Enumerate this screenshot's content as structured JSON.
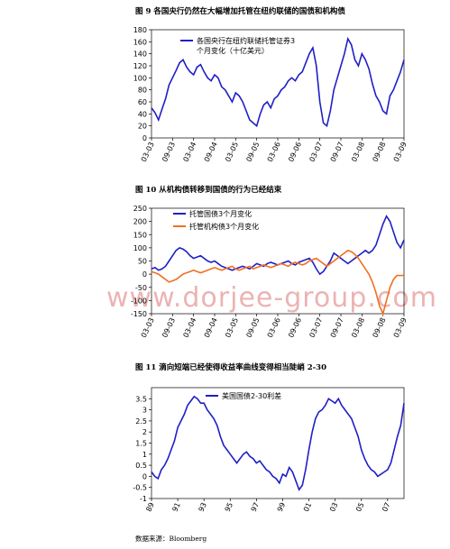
{
  "chart_data": [
    {
      "type": "line",
      "title": "图 9 各国央行仍然在大幅增加托管在纽约联储的国债和机构债",
      "categories": [
        "03-03",
        null,
        null,
        null,
        null,
        null,
        "09-03",
        null,
        null,
        null,
        null,
        null,
        "03-04",
        null,
        null,
        null,
        null,
        null,
        "09-04",
        null,
        null,
        null,
        null,
        null,
        "03-05",
        null,
        null,
        null,
        null,
        null,
        "09-05",
        null,
        null,
        null,
        null,
        null,
        "03-06",
        null,
        null,
        null,
        null,
        null,
        "09-06",
        null,
        null,
        null,
        null,
        null,
        "03-07",
        null,
        null,
        null,
        null,
        null,
        "09-07",
        null,
        null,
        null,
        null,
        null,
        "03-08",
        null,
        null,
        null,
        null,
        null,
        "09-08",
        null,
        null,
        null,
        null,
        null,
        "03-09"
      ],
      "series": [
        {
          "name": "各国央行在纽约联储托管证券3个月变化（十亿美元）",
          "color": "#1f1fc8",
          "values": [
            50,
            42,
            30,
            48,
            65,
            88,
            100,
            112,
            125,
            130,
            118,
            110,
            105,
            118,
            122,
            110,
            100,
            95,
            105,
            100,
            85,
            80,
            70,
            60,
            75,
            70,
            60,
            45,
            30,
            25,
            20,
            40,
            55,
            60,
            50,
            65,
            70,
            80,
            85,
            95,
            100,
            95,
            105,
            110,
            125,
            140,
            150,
            120,
            60,
            25,
            20,
            45,
            80,
            100,
            120,
            140,
            165,
            155,
            130,
            120,
            140,
            130,
            115,
            90,
            70,
            60,
            45,
            40,
            70,
            80,
            95,
            110,
            130
          ]
        }
      ],
      "ylim": [
        0,
        180
      ],
      "yticks": [
        0,
        20,
        40,
        60,
        80,
        100,
        120,
        140,
        160,
        180
      ]
    },
    {
      "type": "line",
      "title": "图 10 从机构债转移到国债的行为已经结束",
      "categories": [
        "03-03",
        null,
        null,
        null,
        null,
        null,
        "09-03",
        null,
        null,
        null,
        null,
        null,
        "03-04",
        null,
        null,
        null,
        null,
        null,
        "09-04",
        null,
        null,
        null,
        null,
        null,
        "03-05",
        null,
        null,
        null,
        null,
        null,
        "09-05",
        null,
        null,
        null,
        null,
        null,
        "03-06",
        null,
        null,
        null,
        null,
        null,
        "09-06",
        null,
        null,
        null,
        null,
        null,
        "03-07",
        null,
        null,
        null,
        null,
        null,
        "09-07",
        null,
        null,
        null,
        null,
        null,
        "03-08",
        null,
        null,
        null,
        null,
        null,
        "09-08",
        null,
        null,
        null,
        null,
        null,
        "03-09"
      ],
      "series": [
        {
          "name": "托管国债3个月变化",
          "color": "#1f1fc8",
          "values": [
            20,
            25,
            15,
            20,
            30,
            50,
            70,
            90,
            100,
            95,
            85,
            70,
            60,
            65,
            70,
            60,
            50,
            45,
            50,
            40,
            30,
            25,
            20,
            15,
            20,
            25,
            30,
            25,
            20,
            30,
            40,
            35,
            30,
            40,
            45,
            40,
            35,
            40,
            45,
            50,
            40,
            35,
            45,
            50,
            55,
            60,
            45,
            20,
            0,
            10,
            30,
            50,
            80,
            70,
            60,
            50,
            40,
            50,
            60,
            70,
            80,
            90,
            80,
            90,
            110,
            150,
            190,
            220,
            200,
            160,
            120,
            100,
            130
          ]
        },
        {
          "name": "托管机构债3个月变化",
          "color": "#f07020",
          "values": [
            10,
            5,
            0,
            -10,
            -20,
            -30,
            -25,
            -20,
            -10,
            0,
            5,
            10,
            15,
            10,
            5,
            10,
            15,
            20,
            25,
            20,
            15,
            20,
            25,
            30,
            20,
            15,
            20,
            25,
            30,
            20,
            25,
            30,
            35,
            30,
            25,
            30,
            35,
            40,
            35,
            30,
            40,
            45,
            40,
            35,
            40,
            50,
            55,
            60,
            50,
            40,
            30,
            40,
            50,
            60,
            70,
            80,
            90,
            85,
            75,
            60,
            40,
            20,
            0,
            -30,
            -70,
            -120,
            -150,
            -100,
            -50,
            -20,
            -5,
            -5,
            -5
          ]
        }
      ],
      "ylim": [
        -150,
        250
      ],
      "yticks": [
        -150,
        -100,
        -50,
        0,
        50,
        100,
        150,
        200,
        250
      ]
    },
    {
      "type": "line",
      "title": "图 11 滴向短端已经使得收益率曲线变得相当陡峭 2-30",
      "categories": [
        "89",
        null,
        null,
        null,
        null,
        null,
        null,
        null,
        "91",
        null,
        null,
        null,
        null,
        null,
        null,
        null,
        "93",
        null,
        null,
        null,
        null,
        null,
        null,
        null,
        "95",
        null,
        null,
        null,
        null,
        null,
        null,
        null,
        "97",
        null,
        null,
        null,
        null,
        null,
        null,
        null,
        "99",
        null,
        null,
        null,
        null,
        null,
        null,
        null,
        "01",
        null,
        null,
        null,
        null,
        null,
        null,
        null,
        "03",
        null,
        null,
        null,
        null,
        null,
        null,
        null,
        "05",
        null,
        null,
        null,
        null,
        null,
        null,
        null,
        "07",
        null,
        null,
        null,
        null,
        null
      ],
      "series": [
        {
          "name": "美国国债2-30利差",
          "color": "#1f1fc8",
          "values": [
            0.2,
            0,
            -0.1,
            0.3,
            0.5,
            0.8,
            1.2,
            1.6,
            2.2,
            2.5,
            2.8,
            3.2,
            3.4,
            3.6,
            3.5,
            3.3,
            3.3,
            3.0,
            2.8,
            2.6,
            2.3,
            1.8,
            1.4,
            1.2,
            1.0,
            0.8,
            0.6,
            0.8,
            1.0,
            1.1,
            0.9,
            0.8,
            0.6,
            0.7,
            0.5,
            0.3,
            0.2,
            0.0,
            -0.1,
            -0.3,
            0.1,
            0.0,
            0.4,
            0.2,
            -0.2,
            -0.6,
            -0.4,
            0.3,
            1.2,
            2.0,
            2.6,
            2.9,
            3.0,
            3.2,
            3.5,
            3.4,
            3.3,
            3.5,
            3.2,
            3.0,
            2.8,
            2.6,
            2.2,
            1.8,
            1.2,
            0.8,
            0.5,
            0.3,
            0.2,
            0.0,
            0.1,
            0.2,
            0.3,
            0.6,
            1.2,
            1.8,
            2.3,
            3.3
          ]
        }
      ],
      "ylim": [
        -1,
        4
      ],
      "yticks": [
        -1,
        -0.5,
        0,
        0.5,
        1,
        1.5,
        2,
        2.5,
        3,
        3.5
      ]
    }
  ],
  "watermark": "www.dorjee-group.com",
  "source": "数据来源：Bloomberg"
}
